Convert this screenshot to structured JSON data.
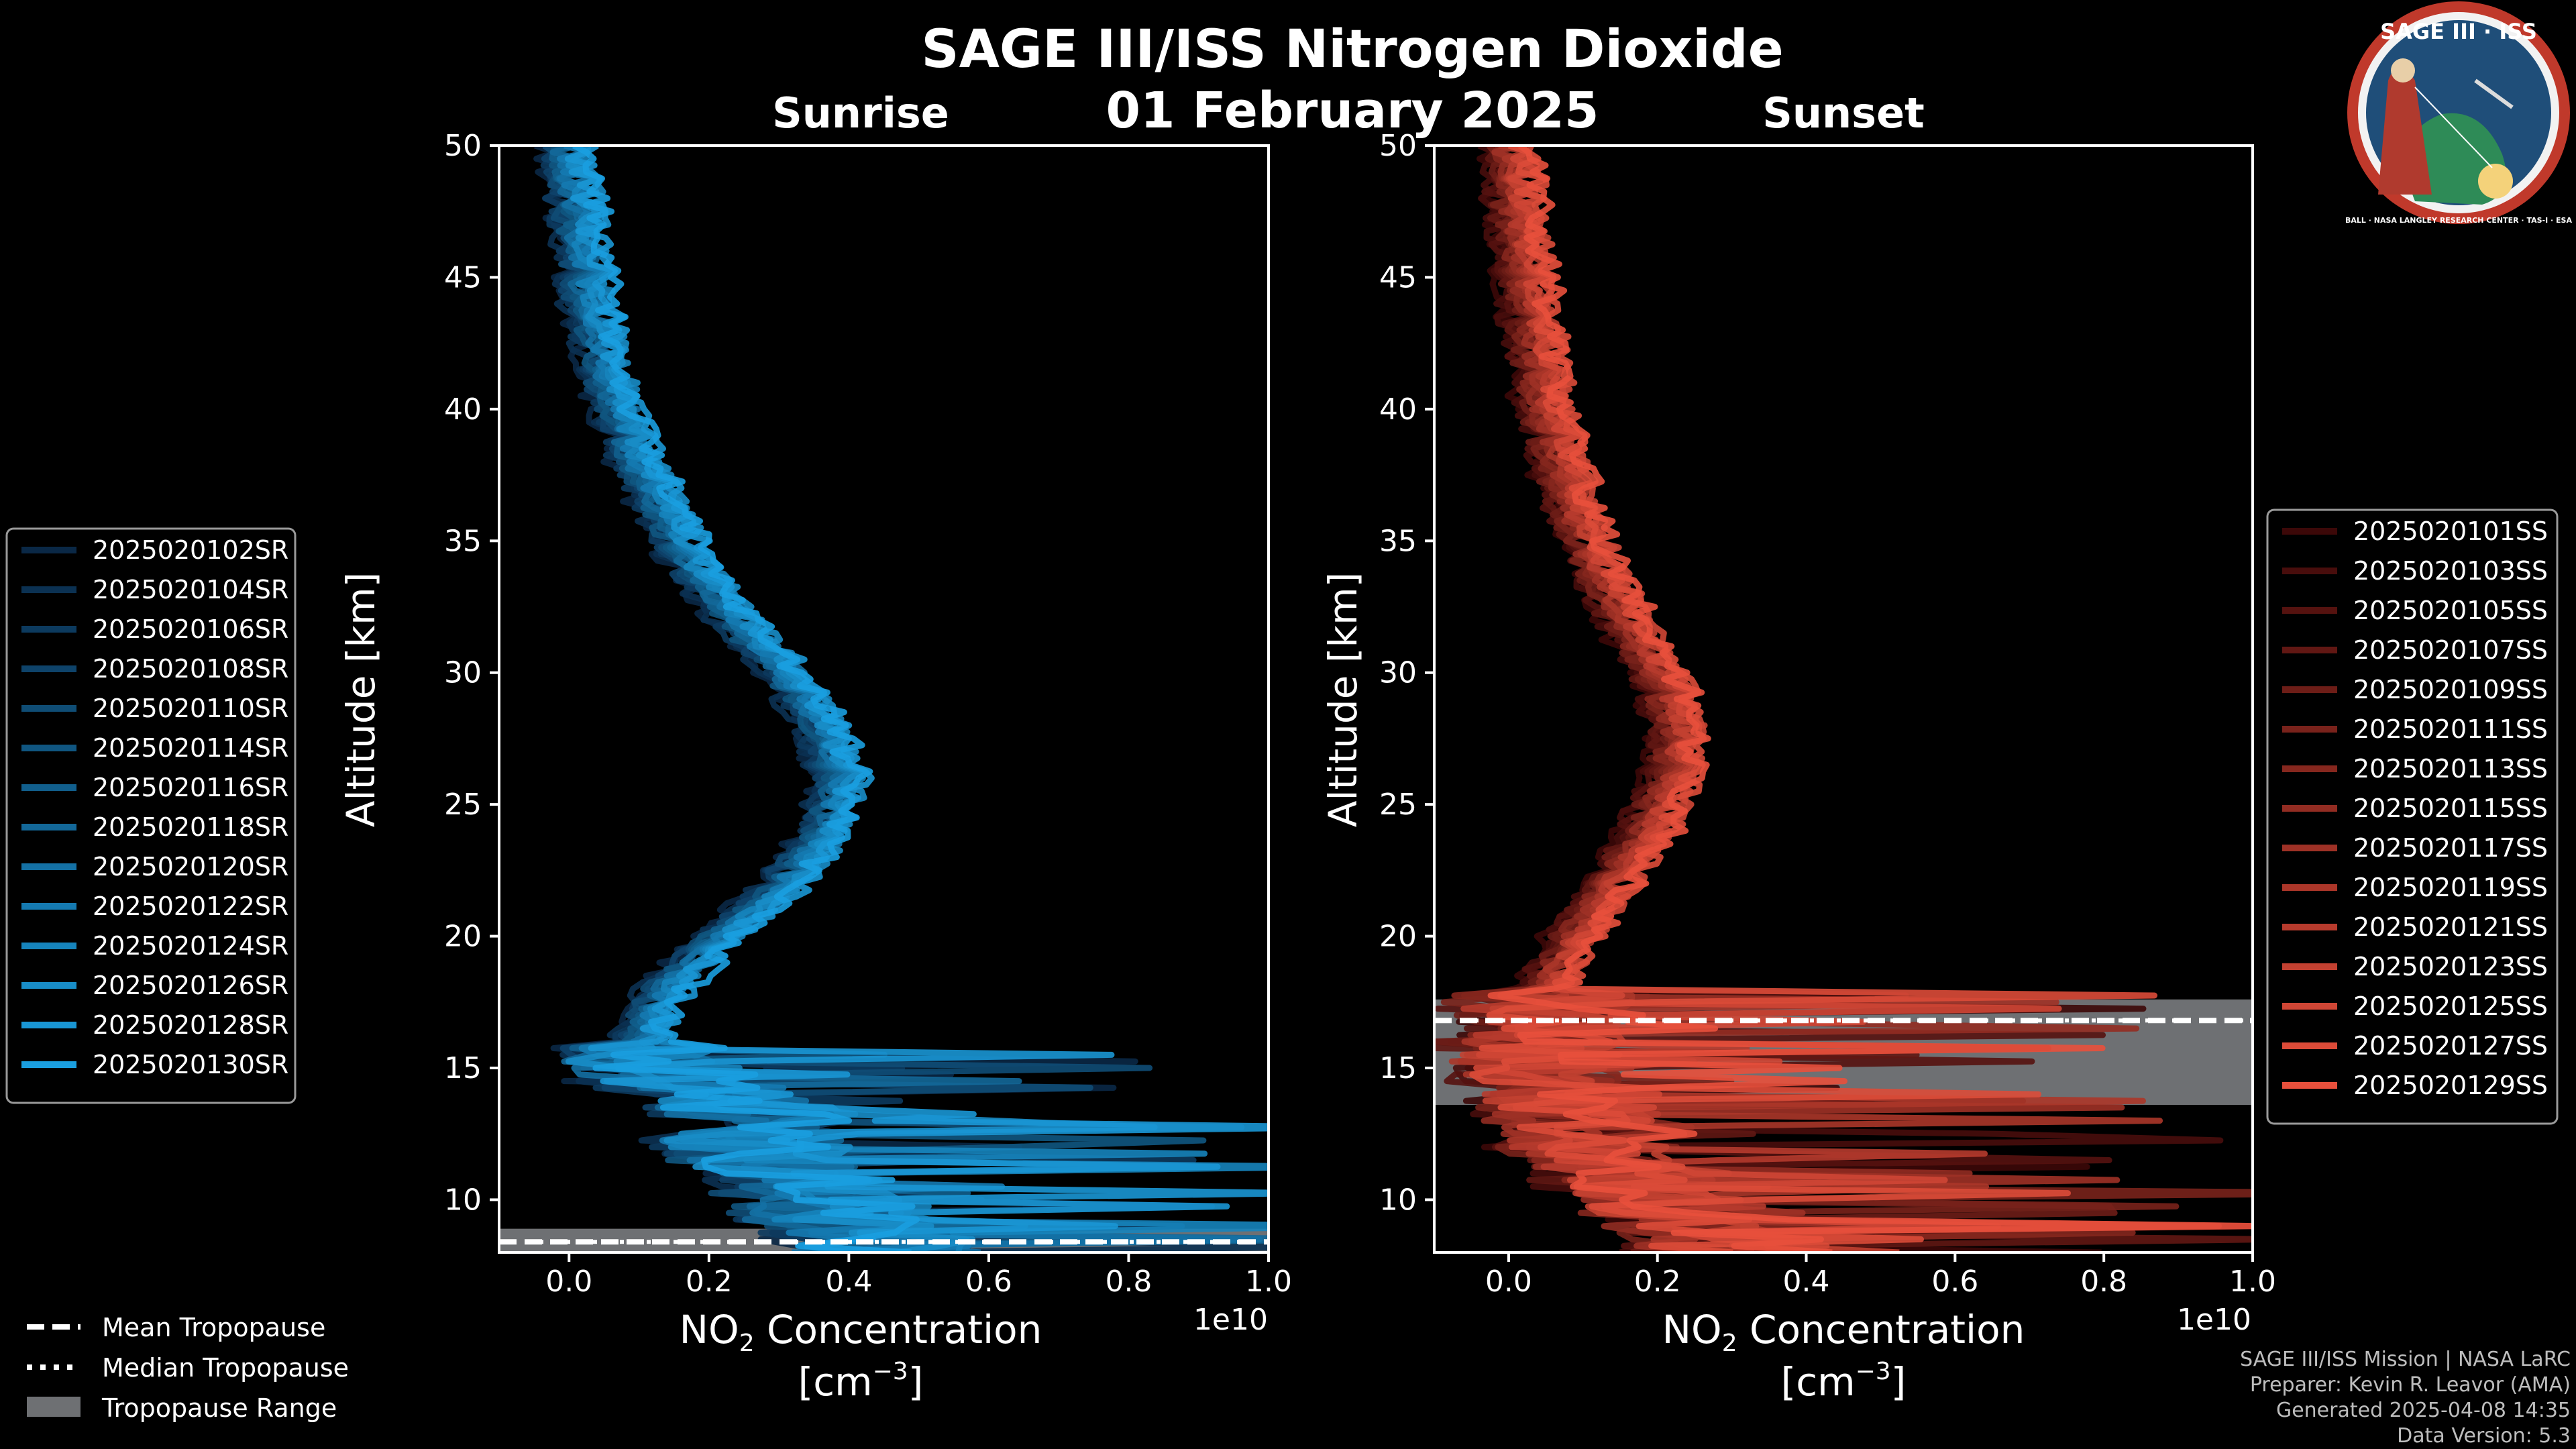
{
  "header": {
    "title": "SAGE III/ISS Nitrogen Dioxide",
    "date": "01 February 2025",
    "logo_text": "SAGE III · ISS",
    "logo_ring_text": "BALL · NASA LANGLEY RESEARCH CENTER · TAS-I · ESA"
  },
  "colors": {
    "sunrise": "#1a9fe0",
    "sunset": "#e8503c",
    "tropopause_range": "#6e7073",
    "background": "#000000",
    "logo_ring": "#c0392b",
    "logo_inner": "#1f4e79"
  },
  "chart_data": [
    {
      "type": "line",
      "title": "Sunrise",
      "xlabel": "NO$_2$ Concentration [cm$^{-3}$]",
      "xlabel_line1_pre": "NO",
      "xlabel_line1_sub": "2",
      "xlabel_line1_post": " Concentration",
      "xlabel_line2_pre": "[cm",
      "xlabel_line2_sup": "−3",
      "xlabel_line2_post": "]",
      "ylabel": "Altitude [km]",
      "xlim": [
        -0.1,
        1.0
      ],
      "ylim": [
        8.0,
        50.0
      ],
      "x_ticks": [
        0.0,
        0.2,
        0.4,
        0.6,
        0.8,
        1.0
      ],
      "x_tick_labels": [
        "0.0",
        "0.2",
        "0.4",
        "0.6",
        "0.8",
        "1.0"
      ],
      "y_ticks": [
        10,
        15,
        20,
        25,
        30,
        35,
        40,
        45,
        50
      ],
      "y_tick_labels": [
        "10",
        "15",
        "20",
        "25",
        "30",
        "35",
        "40",
        "45",
        "50"
      ],
      "offset_label": "1e10",
      "tropopause": {
        "mean": 8.4,
        "median": 8.4,
        "range": [
          8.0,
          8.9
        ]
      },
      "series": [
        "2025020102SR",
        "2025020104SR",
        "2025020106SR",
        "2025020108SR",
        "2025020110SR",
        "2025020114SR",
        "2025020116SR",
        "2025020118SR",
        "2025020120SR",
        "2025020122SR",
        "2025020124SR",
        "2025020126SR",
        "2025020128SR",
        "2025020130SR"
      ],
      "mean_profile": {
        "altitude": [
          8,
          10,
          12,
          13,
          14,
          15,
          16,
          18,
          20,
          22,
          24,
          26,
          28,
          30,
          32,
          34,
          36,
          38,
          40,
          42,
          44,
          46,
          48,
          50
        ],
        "value": [
          0.45,
          0.35,
          0.25,
          0.3,
          0.2,
          0.12,
          0.1,
          0.14,
          0.22,
          0.31,
          0.37,
          0.39,
          0.36,
          0.31,
          0.24,
          0.18,
          0.14,
          0.1,
          0.07,
          0.05,
          0.03,
          0.02,
          0.01,
          0.0
        ]
      }
    },
    {
      "type": "line",
      "title": "Sunset",
      "xlabel": "NO$_2$ Concentration [cm$^{-3}$]",
      "xlabel_line1_pre": "NO",
      "xlabel_line1_sub": "2",
      "xlabel_line1_post": " Concentration",
      "xlabel_line2_pre": "[cm",
      "xlabel_line2_sup": "−3",
      "xlabel_line2_post": "]",
      "ylabel": "Altitude [km]",
      "xlim": [
        -0.1,
        1.0
      ],
      "ylim": [
        8.0,
        50.0
      ],
      "x_ticks": [
        0.0,
        0.2,
        0.4,
        0.6,
        0.8,
        1.0
      ],
      "x_tick_labels": [
        "0.0",
        "0.2",
        "0.4",
        "0.6",
        "0.8",
        "1.0"
      ],
      "y_ticks": [
        10,
        15,
        20,
        25,
        30,
        35,
        40,
        45,
        50
      ],
      "y_tick_labels": [
        "10",
        "15",
        "20",
        "25",
        "30",
        "35",
        "40",
        "45",
        "50"
      ],
      "offset_label": "1e10",
      "tropopause": {
        "mean": 16.8,
        "median": 16.8,
        "range": [
          13.6,
          17.6
        ]
      },
      "series": [
        "2025020101SS",
        "2025020103SS",
        "2025020105SS",
        "2025020107SS",
        "2025020109SS",
        "2025020111SS",
        "2025020113SS",
        "2025020115SS",
        "2025020117SS",
        "2025020119SS",
        "2025020121SS",
        "2025020123SS",
        "2025020125SS",
        "2025020127SS",
        "2025020129SS"
      ],
      "mean_profile": {
        "altitude": [
          8,
          10,
          12,
          14,
          15,
          16,
          18,
          20,
          22,
          24,
          26,
          28,
          30,
          32,
          34,
          36,
          38,
          40,
          42,
          44,
          46,
          48,
          50
        ],
        "value": [
          0.3,
          0.2,
          0.12,
          0.06,
          0.04,
          0.03,
          0.05,
          0.09,
          0.14,
          0.19,
          0.22,
          0.23,
          0.2,
          0.16,
          0.12,
          0.09,
          0.07,
          0.05,
          0.04,
          0.03,
          0.02,
          0.01,
          0.0
        ]
      }
    }
  ],
  "legend_bottom": {
    "mean_tropopause": "Mean Tropopause",
    "median_tropopause": "Median Tropopause",
    "tropopause_range": "Tropopause Range"
  },
  "credits": {
    "line1": "SAGE III/ISS Mission | NASA LaRC",
    "line2": "Preparer: Kevin R. Leavor (AMA)",
    "line3": "Generated 2025-04-08 14:35",
    "line4": "Data Version: 5.3"
  }
}
